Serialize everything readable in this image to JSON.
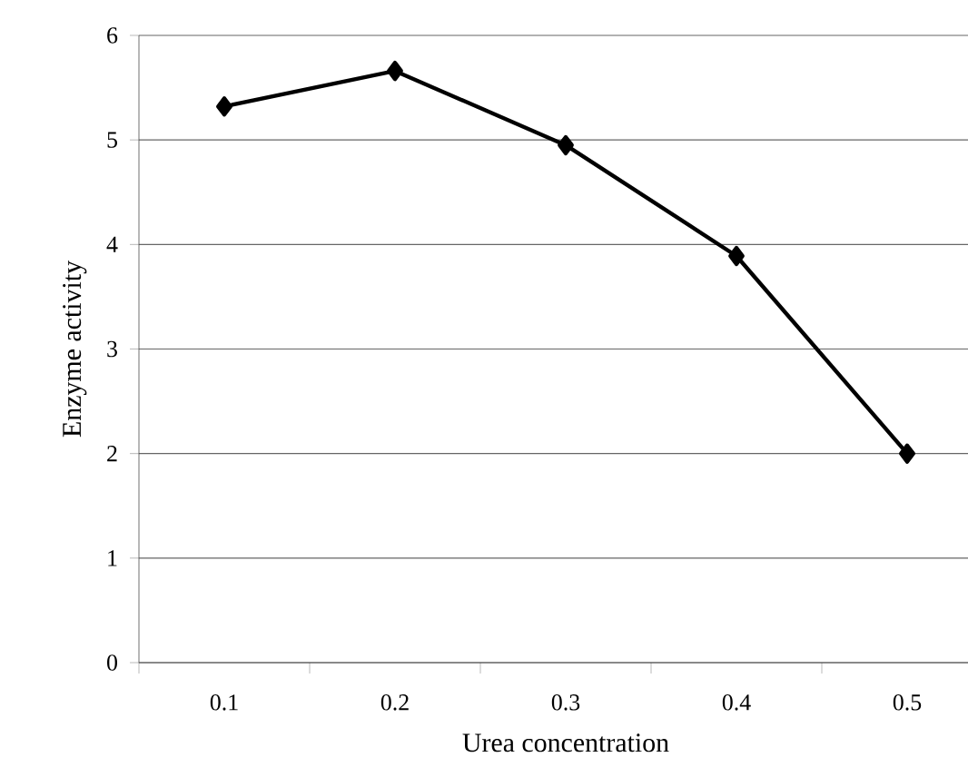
{
  "chart_data": {
    "type": "line",
    "xlabel": "Urea concentration",
    "ylabel": "Enzyme activity",
    "categories": [
      "0.1",
      "0.2",
      "0.3",
      "0.4",
      "0.5"
    ],
    "values": [
      5.32,
      5.66,
      4.95,
      3.89,
      2.0
    ],
    "color": "#000000",
    "marker": "diamond",
    "line_style": "solid",
    "ylim": [
      0,
      6
    ],
    "yticks": [
      0,
      1,
      2,
      3,
      4,
      5,
      6
    ],
    "grid": "y"
  }
}
